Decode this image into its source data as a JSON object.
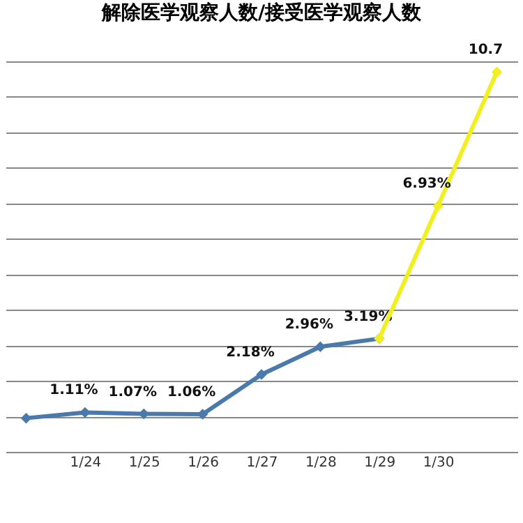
{
  "chart_data": {
    "type": "line",
    "title": "解除医学观察人数/接受医学观察人数",
    "categories": [
      null,
      "1/24",
      "1/25",
      "1/26",
      "1/27",
      "1/28",
      "1/29",
      "1/30",
      null
    ],
    "series": [
      {
        "color": "#4a7aab",
        "values": [
          0.95,
          1.11,
          1.07,
          1.06,
          2.18,
          2.96,
          3.19,
          null,
          null
        ],
        "value_labels": [
          null,
          "1.11%",
          "1.07%",
          "1.06%",
          "2.18%",
          "2.96%",
          "3.19%",
          null,
          null
        ]
      },
      {
        "color": "#f0f020",
        "values": [
          null,
          null,
          null,
          null,
          null,
          null,
          3.19,
          6.93,
          10.7
        ],
        "value_labels": [
          null,
          null,
          null,
          null,
          null,
          null,
          null,
          "6.93%",
          "10.7"
        ]
      }
    ],
    "grid": "y",
    "tick_labels": "x",
    "marker": "diamond",
    "line_style": "solid"
  }
}
